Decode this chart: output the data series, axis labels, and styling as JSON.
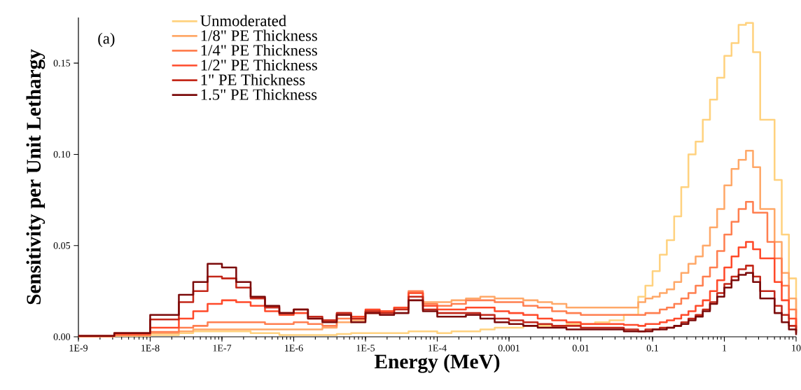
{
  "chart_data": {
    "type": "step",
    "xlabel": "Energy (MeV)",
    "ylabel": "Sensitivity per Unit Lethargy",
    "annotations": [
      "(a)"
    ],
    "log": "x",
    "legend": "top left",
    "grid": false,
    "x": [
      1e-09,
      3.16e-09,
      1e-08,
      2.51e-08,
      3.98e-08,
      6.31e-08,
      1e-07,
      1.58e-07,
      2.51e-07,
      3.98e-07,
      6.31e-07,
      1e-06,
      1.58e-06,
      2.51e-06,
      3.98e-06,
      6.31e-06,
      1e-05,
      1.58e-05,
      2.51e-05,
      3.98e-05,
      6.31e-05,
      0.0001,
      0.000158,
      0.000251,
      0.000398,
      0.000631,
      0.001,
      0.00158,
      0.00251,
      0.00398,
      0.00631,
      0.01,
      0.0158,
      0.0251,
      0.0398,
      0.0631,
      0.0794,
      0.1,
      0.126,
      0.158,
      0.2,
      0.251,
      0.316,
      0.398,
      0.501,
      0.631,
      0.794,
      1,
      1.26,
      1.58,
      2,
      2.51,
      3.16,
      3.98,
      5.01,
      6.31,
      7.94,
      10
    ],
    "xlim": [
      1e-09,
      10
    ],
    "ylim": [
      0,
      0.175
    ],
    "xticks": [
      {
        "value": 1e-09,
        "label": "1E-9"
      },
      {
        "value": 1e-08,
        "label": "1E-8"
      },
      {
        "value": 1e-07,
        "label": "1E-7"
      },
      {
        "value": 1e-06,
        "label": "1E-6"
      },
      {
        "value": 1e-05,
        "label": "1E-5"
      },
      {
        "value": 0.0001,
        "label": "1E-4"
      },
      0.001,
      0.01,
      0.1,
      1,
      10
    ],
    "yticks": [
      {
        "value": 0,
        "label": "0.00"
      },
      0.05,
      {
        "value": 0.1,
        "label": "0.10"
      },
      0.15
    ],
    "series": [
      {
        "name": "Unmoderated",
        "color": "#ffd27f",
        "values": [
          0.0002,
          0.0005,
          0.001,
          0.002,
          0.003,
          0.003,
          0.003,
          0.003,
          0.002,
          0.002,
          0.001,
          0.001,
          0.001,
          0.001,
          0.0015,
          0.002,
          0.002,
          0.002,
          0.002,
          0.003,
          0.003,
          0.002,
          0.003,
          0.003,
          0.004,
          0.005,
          0.005,
          0.006,
          0.006,
          0.006,
          0.007,
          0.007,
          0.008,
          0.009,
          0.012,
          0.022,
          0.028,
          0.036,
          0.045,
          0.053,
          0.066,
          0.082,
          0.1,
          0.107,
          0.119,
          0.13,
          0.142,
          0.154,
          0.161,
          0.171,
          0.172,
          0.156,
          0.119,
          0.119,
          0.086,
          0.056,
          0.032,
          0.013
        ]
      },
      {
        "name": "1/8\" PE Thickness",
        "color": "#ffa868",
        "values": [
          0.0002,
          0.0008,
          0.002,
          0.003,
          0.004,
          0.004,
          0.004,
          0.004,
          0.004,
          0.004,
          0.004,
          0.004,
          0.004,
          0.005,
          0.008,
          0.009,
          0.013,
          0.014,
          0.016,
          0.024,
          0.019,
          0.019,
          0.02,
          0.021,
          0.022,
          0.021,
          0.021,
          0.02,
          0.019,
          0.018,
          0.016,
          0.016,
          0.016,
          0.016,
          0.016,
          0.019,
          0.021,
          0.022,
          0.024,
          0.026,
          0.03,
          0.035,
          0.04,
          0.044,
          0.05,
          0.06,
          0.07,
          0.083,
          0.092,
          0.097,
          0.102,
          0.093,
          0.07,
          0.07,
          0.052,
          0.035,
          0.021,
          0.005
        ]
      },
      {
        "name": "1/4\" PE Thickness",
        "color": "#ff7f50",
        "values": [
          0.0003,
          0.001,
          0.0027,
          0.005,
          0.006,
          0.008,
          0.008,
          0.008,
          0.008,
          0.007,
          0.007,
          0.008,
          0.007,
          0.006,
          0.01,
          0.01,
          0.014,
          0.014,
          0.016,
          0.025,
          0.018,
          0.017,
          0.018,
          0.02,
          0.02,
          0.019,
          0.019,
          0.017,
          0.016,
          0.014,
          0.013,
          0.012,
          0.012,
          0.012,
          0.012,
          0.012,
          0.013,
          0.013,
          0.015,
          0.016,
          0.018,
          0.021,
          0.024,
          0.028,
          0.033,
          0.038,
          0.047,
          0.056,
          0.063,
          0.07,
          0.074,
          0.068,
          0.068,
          0.052,
          0.043,
          0.028,
          0.015,
          0.004
        ]
      },
      {
        "name": "1/2\" PE Thickness",
        "color": "#ff4a2a",
        "values": [
          0.0004,
          0.0015,
          0.005,
          0.01,
          0.014,
          0.018,
          0.02,
          0.019,
          0.017,
          0.014,
          0.012,
          0.013,
          0.01,
          0.009,
          0.013,
          0.011,
          0.015,
          0.014,
          0.016,
          0.024,
          0.017,
          0.015,
          0.015,
          0.016,
          0.016,
          0.014,
          0.013,
          0.012,
          0.01,
          0.009,
          0.008,
          0.007,
          0.007,
          0.007,
          0.0065,
          0.006,
          0.007,
          0.007,
          0.008,
          0.009,
          0.01,
          0.012,
          0.014,
          0.017,
          0.02,
          0.025,
          0.031,
          0.038,
          0.044,
          0.049,
          0.052,
          0.048,
          0.043,
          0.043,
          0.03,
          0.02,
          0.01,
          0.003
        ]
      },
      {
        "name": "1\" PE Thickness",
        "color": "#c3281a",
        "values": [
          0.0005,
          0.002,
          0.0095,
          0.019,
          0.025,
          0.033,
          0.032,
          0.027,
          0.021,
          0.016,
          0.013,
          0.015,
          0.011,
          0.009,
          0.013,
          0.01,
          0.014,
          0.013,
          0.015,
          0.022,
          0.015,
          0.013,
          0.013,
          0.013,
          0.012,
          0.01,
          0.009,
          0.008,
          0.007,
          0.006,
          0.006,
          0.005,
          0.005,
          0.005,
          0.004,
          0.003,
          0.004,
          0.004,
          0.005,
          0.005,
          0.006,
          0.008,
          0.01,
          0.012,
          0.015,
          0.019,
          0.024,
          0.029,
          0.033,
          0.037,
          0.039,
          0.033,
          0.025,
          0.025,
          0.017,
          0.012,
          0.006,
          0.002
        ]
      },
      {
        "name": "1.5\" PE Thickness",
        "color": "#7b0a0a",
        "values": [
          0.0005,
          0.002,
          0.012,
          0.023,
          0.03,
          0.04,
          0.038,
          0.03,
          0.022,
          0.017,
          0.013,
          0.015,
          0.01,
          0.008,
          0.012,
          0.008,
          0.013,
          0.012,
          0.013,
          0.02,
          0.014,
          0.011,
          0.011,
          0.012,
          0.01,
          0.008,
          0.007,
          0.006,
          0.005,
          0.005,
          0.004,
          0.004,
          0.004,
          0.004,
          0.003,
          0.003,
          0.003,
          0.004,
          0.004,
          0.005,
          0.006,
          0.007,
          0.009,
          0.011,
          0.014,
          0.018,
          0.022,
          0.027,
          0.031,
          0.034,
          0.035,
          0.03,
          0.021,
          0.021,
          0.013,
          0.008,
          0.004,
          0.001
        ]
      }
    ]
  }
}
